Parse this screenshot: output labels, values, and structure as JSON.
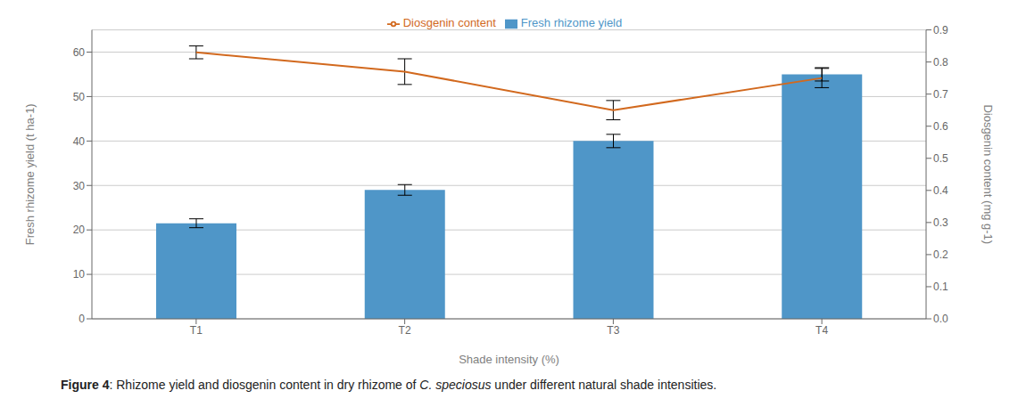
{
  "chart_data": {
    "type": "bar",
    "caption": "Figure 4: Rhizome yield and diosgenin content in dry rhizome of C. speciosus under different natural shade intensities.",
    "caption_italic": "C. speciosus",
    "xlabel": "Shade intensity (%)",
    "ylabel": "Fresh rhizome yield (t ha-1)",
    "y2label": "Diosgenin content (mg g-1)",
    "categories": [
      "T1",
      "T2",
      "T3",
      "T4"
    ],
    "series": [
      {
        "name": "Fresh rhizome yield",
        "type": "bar",
        "color": "#4f96c8",
        "values": [
          21.5,
          29.0,
          40.0,
          55.0
        ],
        "errors": [
          1.0,
          1.2,
          1.5,
          1.5
        ]
      },
      {
        "name": "Diosgenin content",
        "type": "line",
        "axis": "y2",
        "color": "#d2691e",
        "values": [
          0.83,
          0.77,
          0.65,
          0.75
        ],
        "errors": [
          0.02,
          0.04,
          0.03,
          0.03
        ]
      }
    ],
    "ylim": [
      0,
      65
    ],
    "yticks": [
      0,
      10,
      20,
      30,
      40,
      50,
      60
    ],
    "y2lim": [
      0,
      0.9
    ],
    "y2ticks": [
      {
        "value": 0,
        "label": "0.0"
      },
      0.1,
      0.2,
      0.3,
      0.4,
      0.5,
      0.6,
      0.7,
      0.8,
      0.9
    ],
    "grid": true,
    "legend": "top"
  }
}
